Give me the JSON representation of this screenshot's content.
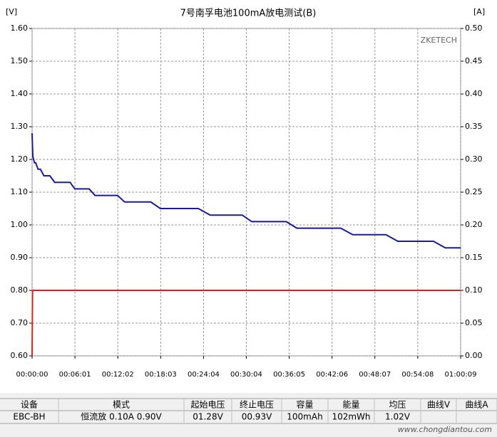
{
  "chart_data": {
    "type": "line",
    "title": "7号南孚电池100mA放电测试(B)",
    "y_unit": "[V]",
    "y2_unit": "[A]",
    "watermark": "ZKETECH",
    "xlim": [
      0,
      3609
    ],
    "xticks": [
      {
        "value": 0,
        "label": "00:00:00"
      },
      {
        "value": 361,
        "label": "00:06:01"
      },
      {
        "value": 722,
        "label": "00:12:02"
      },
      {
        "value": 1083,
        "label": "00:18:03"
      },
      {
        "value": 1444,
        "label": "00:24:04"
      },
      {
        "value": 1804,
        "label": "00:30:04"
      },
      {
        "value": 2165,
        "label": "00:36:05"
      },
      {
        "value": 2526,
        "label": "00:42:06"
      },
      {
        "value": 2887,
        "label": "00:48:07"
      },
      {
        "value": 3248,
        "label": "00:54:08"
      },
      {
        "value": 3609,
        "label": "01:00:09"
      }
    ],
    "ylim": [
      0.6,
      1.6
    ],
    "yticks": [
      {
        "value": 0.6,
        "label": "0.60"
      },
      {
        "value": 0.7,
        "label": "0.70"
      },
      {
        "value": 0.8,
        "label": "0.80"
      },
      {
        "value": 0.9,
        "label": "0.90"
      },
      {
        "value": 1.0,
        "label": "1.00"
      },
      {
        "value": 1.1,
        "label": "1.10"
      },
      {
        "value": 1.2,
        "label": "1.20"
      },
      {
        "value": 1.3,
        "label": "1.30"
      },
      {
        "value": 1.4,
        "label": "1.40"
      },
      {
        "value": 1.5,
        "label": "1.50"
      },
      {
        "value": 1.6,
        "label": "1.60"
      }
    ],
    "y2lim": [
      0,
      0.5
    ],
    "y2ticks": [
      {
        "value": 0,
        "label": "0.00"
      },
      {
        "value": 0.05,
        "label": "0.05"
      },
      {
        "value": 0.1,
        "label": "0.10"
      },
      {
        "value": 0.15,
        "label": "0.15"
      },
      {
        "value": 0.2,
        "label": "0.20"
      },
      {
        "value": 0.25,
        "label": "0.25"
      },
      {
        "value": 0.3,
        "label": "0.30"
      },
      {
        "value": 0.35,
        "label": "0.35"
      },
      {
        "value": 0.4,
        "label": "0.40"
      },
      {
        "value": 0.45,
        "label": "0.45"
      },
      {
        "value": 0.5,
        "label": "0.50"
      }
    ],
    "grid": true,
    "series": [
      {
        "color": "#1a1a9a",
        "axis": "y",
        "x": [
          0,
          6,
          20,
          30,
          50,
          70,
          100,
          150,
          190,
          320,
          360,
          480,
          530,
          720,
          780,
          1000,
          1080,
          1400,
          1500,
          1770,
          1850,
          2140,
          2230,
          2600,
          2700,
          2980,
          3080,
          3380,
          3480,
          3609
        ],
        "values": [
          1.28,
          1.21,
          1.19,
          1.19,
          1.17,
          1.17,
          1.15,
          1.15,
          1.13,
          1.13,
          1.11,
          1.11,
          1.09,
          1.09,
          1.07,
          1.07,
          1.05,
          1.05,
          1.03,
          1.03,
          1.01,
          1.01,
          0.99,
          0.99,
          0.97,
          0.97,
          0.95,
          0.95,
          0.93,
          0.93
        ]
      },
      {
        "color": "#e02020",
        "axis": "y2",
        "x": [
          0,
          4,
          3609
        ],
        "values": [
          0,
          0.1,
          0.1
        ]
      }
    ]
  },
  "table": {
    "headers": [
      "设备",
      "模式",
      "起始电压",
      "终止电压",
      "容量",
      "能量",
      "均压",
      "曲线V",
      "曲线A"
    ],
    "rows": [
      [
        "EBC-BH",
        "恒流放  0.10A  0.90V",
        "01.28V",
        "00.93V",
        "100mAh",
        "102mWh",
        "1.02V",
        "",
        ""
      ]
    ],
    "watermark": "www.chongdiantou.com"
  }
}
